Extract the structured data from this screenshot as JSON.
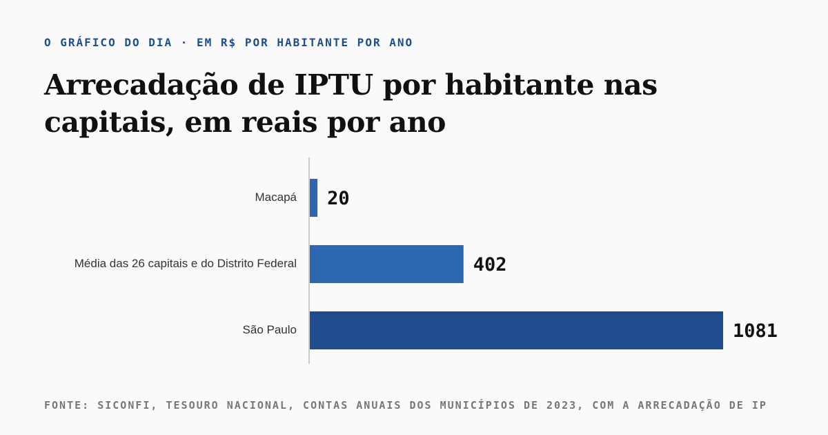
{
  "header": {
    "kicker": "O GRÁFICO DO DIA · EM R$ POR HABITANTE POR ANO",
    "title": "Arrecadação de IPTU por habitante nas capitais, em reais por ano"
  },
  "footer": {
    "source": "FONTE: SICONFI, TESOURO NACIONAL, CONTAS ANUAIS DOS MUNICÍPIOS DE 2023, COM A ARRECADAÇÃO DE IP"
  },
  "chart_data": {
    "type": "bar",
    "orientation": "horizontal",
    "categories": [
      "Macapá",
      "Média das 26 capitais e do Distrito Federal",
      "São Paulo"
    ],
    "values": [
      20,
      402,
      1081
    ],
    "colors": [
      "#2e67b1",
      "#2e67b1",
      "#1f4c8d"
    ],
    "axis_color": "#bbbbbb",
    "grid": false,
    "legend": "none"
  }
}
